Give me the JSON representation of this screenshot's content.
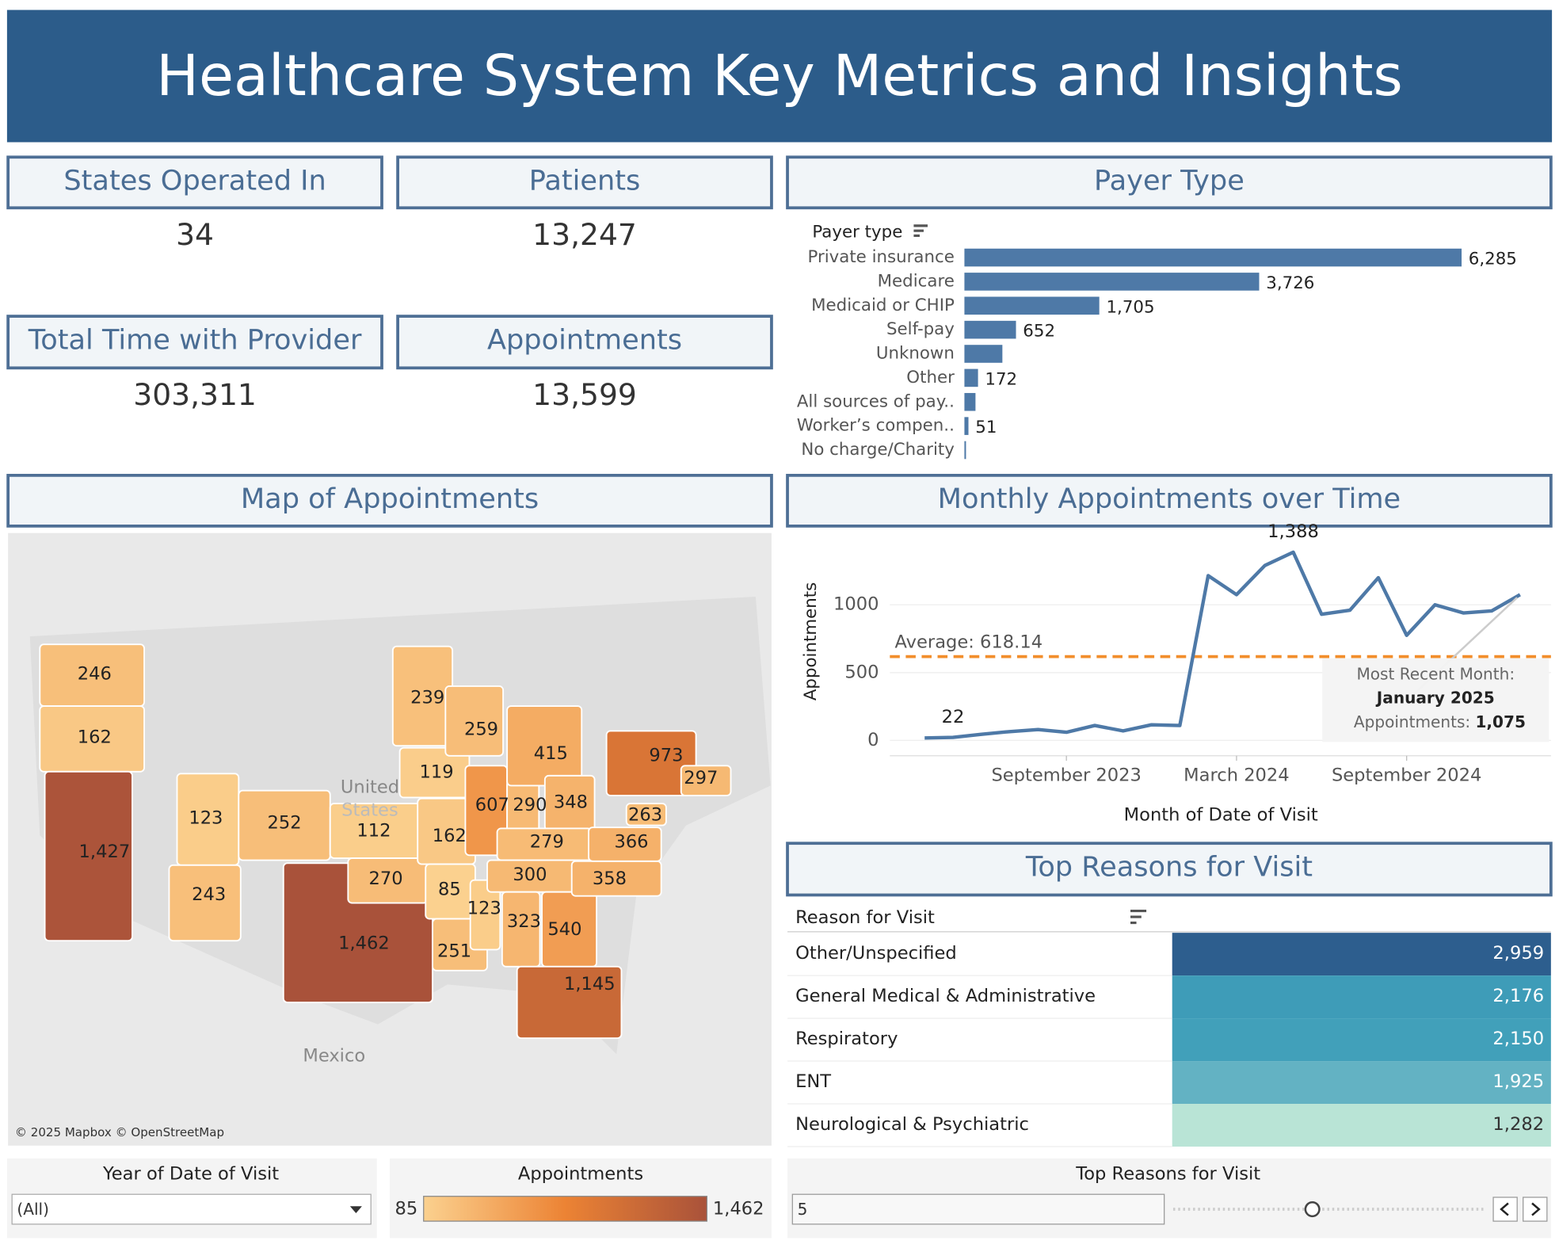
{
  "header": {
    "title": "Healthcare System Key Metrics and Insights"
  },
  "kpis": [
    {
      "label": "States Operated In",
      "value": "34"
    },
    {
      "label": "Patients",
      "value": "13,247"
    },
    {
      "label": "Total Time with Provider",
      "value": "303,311"
    },
    {
      "label": "Appointments",
      "value": "13,599"
    }
  ],
  "chart_data": [
    {
      "type": "bar",
      "title": "Payer Type",
      "axis_label": "Payer type",
      "orientation": "horizontal",
      "color": "#4e79a7",
      "categories": [
        "Private insurance",
        "Medicare",
        "Medicaid or CHIP",
        "Self-pay",
        "Unknown",
        "Other",
        "All sources of pay..",
        "Worker’s compen..",
        "No charge/Charity"
      ],
      "values": [
        6285,
        3726,
        1705,
        652,
        480,
        172,
        140,
        51,
        20
      ],
      "value_labels": [
        "6,285",
        "3,726",
        "1,705",
        "652",
        null,
        "172",
        null,
        "51",
        null
      ],
      "xlim": [
        0,
        7000
      ]
    },
    {
      "type": "line",
      "title": "Monthly Appointments over Time",
      "y_label": "Appointments",
      "x_label": "Month of Date of Visit",
      "color": "#4e79a7",
      "x": [
        "2023-04",
        "2023-05",
        "2023-06",
        "2023-07",
        "2023-08",
        "2023-09",
        "2023-10",
        "2023-11",
        "2023-12",
        "2024-01",
        "2024-02",
        "2024-03",
        "2024-04",
        "2024-05",
        "2024-06",
        "2024-07",
        "2024-08",
        "2024-09",
        "2024-10",
        "2024-11",
        "2024-12",
        "2025-01"
      ],
      "values": [
        18,
        22,
        45,
        65,
        80,
        60,
        110,
        70,
        115,
        110,
        1215,
        1075,
        1290,
        1388,
        930,
        960,
        1200,
        775,
        1000,
        940,
        955,
        1075
      ],
      "value_labels": [
        null,
        "22",
        null,
        null,
        null,
        null,
        null,
        null,
        null,
        null,
        null,
        null,
        null,
        "1,388",
        null,
        null,
        null,
        null,
        null,
        null,
        null,
        null
      ],
      "ylim": [
        -150,
        1500
      ],
      "yticks": [
        0,
        500,
        1000
      ],
      "xticks": [
        {
          "value": "2023-09",
          "label": "September 2023"
        },
        {
          "value": "2024-03",
          "label": "March 2024"
        },
        {
          "value": "2024-09",
          "label": "September 2024"
        }
      ],
      "grid": true,
      "reference_line": {
        "value": 618.14,
        "label": "Average: 618.14",
        "color": "#f28e2b"
      },
      "annotation": {
        "heading": "Most Recent Month:",
        "month": "January 2025",
        "measure": "Appointments:",
        "value": "1,075"
      }
    },
    {
      "type": "map",
      "title": "Map of Appointments",
      "values": [
        246,
        162,
        1427,
        123,
        252,
        243,
        1462,
        112,
        270,
        239,
        119,
        162,
        85,
        251,
        123,
        259,
        607,
        290,
        415,
        348,
        279,
        300,
        323,
        540,
        1145,
        358,
        366,
        263,
        973,
        297
      ],
      "value_labels": [
        "246",
        "162",
        "1,427",
        "123",
        "252",
        "243",
        "1,462",
        "112",
        "270",
        "239",
        "119",
        "162",
        "85",
        "251",
        "123",
        "259",
        "607",
        "290",
        "415",
        "348",
        "279",
        "300",
        "323",
        "540",
        "1,145",
        "358",
        "366",
        "263",
        "973",
        "297"
      ],
      "color_range": [
        "#fbd18f",
        "#ec8334",
        "#a9523a"
      ],
      "country_labels": [
        "United",
        "States",
        "Mexico"
      ],
      "attribution": "© 2025 Mapbox © OpenStreetMap"
    },
    {
      "type": "table",
      "title": "Top Reasons for Visit",
      "column": "Reason for Visit",
      "categories": [
        "Other/Unspecified",
        "General Medical & Administrative",
        "Respiratory",
        "ENT",
        "Neurological & Psychiatric"
      ],
      "values": [
        2959,
        2176,
        2150,
        1925,
        1282
      ],
      "value_labels": [
        "2,959",
        "2,176",
        "2,150",
        "1,925",
        "1,282"
      ],
      "colors": [
        "#2d5e8e",
        "#3e9cb8",
        "#41a0ba",
        "#63b2c3",
        "#b9e4d6"
      ]
    }
  ],
  "controls": {
    "year_filter": {
      "title": "Year of Date of Visit",
      "selected": "(All)"
    },
    "color_legend": {
      "title": "Appointments",
      "min": 85,
      "max": {
        "value": 1462,
        "label": "1,462"
      }
    },
    "top_n": {
      "title": "Top Reasons for Visit",
      "value": "5"
    }
  }
}
